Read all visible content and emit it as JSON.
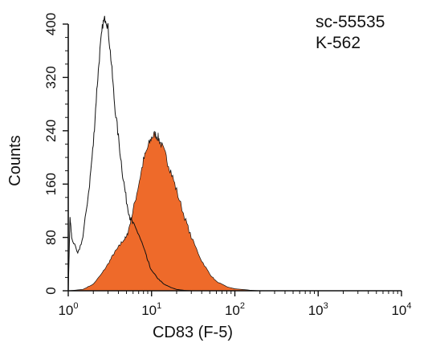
{
  "chart_data": {
    "type": "area",
    "xlabel": "CD83 (F-5)",
    "ylabel": "Counts",
    "x_scale": "log",
    "xlim": [
      1,
      10000
    ],
    "ylim": [
      0,
      400
    ],
    "x_ticks": [
      {
        "value": 1,
        "base": "10",
        "exp": "0"
      },
      {
        "value": 10,
        "base": "10",
        "exp": "1"
      },
      {
        "value": 100,
        "base": "10",
        "exp": "2"
      },
      {
        "value": 1000,
        "base": "10",
        "exp": "3"
      },
      {
        "value": 10000,
        "base": "10",
        "exp": "4"
      }
    ],
    "y_ticks": [
      {
        "value": 0,
        "label": "0"
      },
      {
        "value": 80,
        "label": "80"
      },
      {
        "value": 160,
        "label": "160"
      },
      {
        "value": 240,
        "label": "240"
      },
      {
        "value": 320,
        "label": "320"
      },
      {
        "value": 400,
        "label": "400"
      }
    ],
    "annotations": [
      "sc-55535",
      "K-562"
    ],
    "grid": false,
    "series": [
      {
        "style": "outline",
        "color": "#111111",
        "points": [
          [
            1.0,
            0
          ],
          [
            1.05,
            110
          ],
          [
            1.1,
            80
          ],
          [
            1.3,
            55
          ],
          [
            1.5,
            80
          ],
          [
            1.8,
            160
          ],
          [
            2.0,
            220
          ],
          [
            2.2,
            300
          ],
          [
            2.4,
            360
          ],
          [
            2.6,
            400
          ],
          [
            2.8,
            410
          ],
          [
            3.0,
            395
          ],
          [
            3.3,
            340
          ],
          [
            3.6,
            280
          ],
          [
            4.0,
            230
          ],
          [
            4.5,
            175
          ],
          [
            5.0,
            135
          ],
          [
            5.5,
            110
          ],
          [
            6.0,
            100
          ],
          [
            7.0,
            85
          ],
          [
            8.0,
            65
          ],
          [
            9.0,
            45
          ],
          [
            10.0,
            30
          ],
          [
            12.0,
            18
          ],
          [
            14.0,
            10
          ],
          [
            17.0,
            5
          ],
          [
            20.0,
            2
          ],
          [
            25.0,
            0.5
          ],
          [
            30.0,
            0
          ]
        ]
      },
      {
        "style": "filled",
        "color": "#ee6a2a",
        "points": [
          [
            1.0,
            0
          ],
          [
            1.5,
            2
          ],
          [
            2.0,
            10
          ],
          [
            2.5,
            25
          ],
          [
            3.0,
            40
          ],
          [
            3.5,
            55
          ],
          [
            4.0,
            65
          ],
          [
            4.5,
            75
          ],
          [
            5.0,
            80
          ],
          [
            5.5,
            100
          ],
          [
            6.0,
            120
          ],
          [
            7.0,
            160
          ],
          [
            8.0,
            195
          ],
          [
            9.0,
            215
          ],
          [
            10.0,
            230
          ],
          [
            11.0,
            235
          ],
          [
            12.0,
            230
          ],
          [
            13.0,
            220
          ],
          [
            15.0,
            200
          ],
          [
            17.0,
            180
          ],
          [
            20.0,
            150
          ],
          [
            25.0,
            110
          ],
          [
            30.0,
            80
          ],
          [
            40.0,
            45
          ],
          [
            50.0,
            25
          ],
          [
            60.0,
            14
          ],
          [
            80.0,
            6
          ],
          [
            100.0,
            3
          ],
          [
            150.0,
            1
          ],
          [
            200.0,
            0
          ]
        ]
      }
    ]
  }
}
